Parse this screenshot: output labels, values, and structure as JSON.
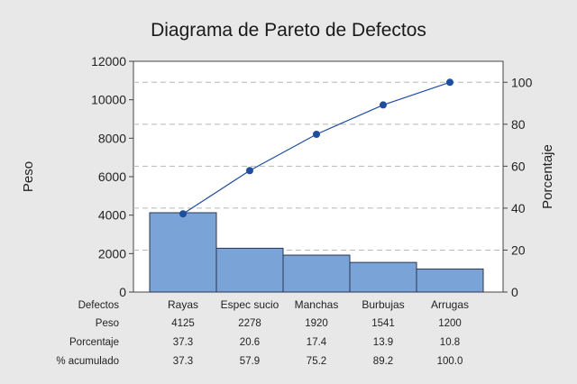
{
  "chart_data": {
    "type": "bar",
    "title": "Diagrama de Pareto de Defectos",
    "ylabel": "Peso",
    "y2label": "Porcentaje",
    "ylim": [
      0,
      12000
    ],
    "y2lim": [
      0,
      110
    ],
    "yticks": [
      0,
      2000,
      4000,
      6000,
      8000,
      10000,
      12000
    ],
    "y2ticks": [
      0,
      20,
      40,
      60,
      80,
      100
    ],
    "categories": [
      "Rayas",
      "Espec sucio",
      "Manchas",
      "Burbujas",
      "Arrugas"
    ],
    "series": [
      {
        "name": "Peso",
        "type": "bar",
        "values": [
          4125,
          2278,
          1920,
          1541,
          1200
        ]
      },
      {
        "name": "% acumulado",
        "type": "line",
        "axis": "right",
        "values": [
          37.3,
          57.9,
          75.2,
          89.2,
          100.0
        ]
      }
    ],
    "table": {
      "row_labels": [
        "Defectos",
        "Peso",
        "Porcentaje",
        "% acumulado"
      ],
      "rows": {
        "peso": [
          "4125",
          "2278",
          "1920",
          "1541",
          "1200"
        ],
        "porcentaje": [
          "37.3",
          "20.6",
          "17.4",
          "13.9",
          "10.8"
        ],
        "acumulado": [
          "37.3",
          "57.9",
          "75.2",
          "89.2",
          "100.0"
        ]
      }
    },
    "grid": "dashed horizontal (right axis)",
    "colors": {
      "bar": "#7aa3d8",
      "bar_edge": "#2a3550",
      "line": "#1f4e9e",
      "background": "#e8e8e8",
      "plot_bg": "#ffffff"
    }
  }
}
